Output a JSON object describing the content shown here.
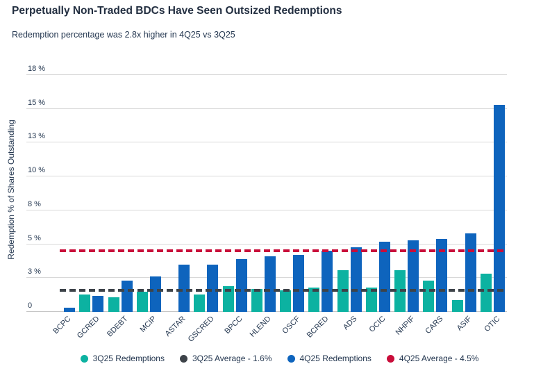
{
  "colors": {
    "teal": "#0cb2a1",
    "blue": "#0e64bd",
    "dark": "#3d4349",
    "red": "#c90d3a",
    "grid": "#d8d8d8",
    "axis": "#c6c6c6",
    "text": "#243750"
  },
  "chart_data": {
    "type": "bar",
    "title": "Perpetually Non-Traded BDCs Have Seen Outsized Redemptions",
    "subtitle": "Redemption percentage was 2.8x higher in 4Q25 vs 3Q25",
    "xlabel": "",
    "ylabel": "Redemption % of Shares Outstanding",
    "ylim": [
      0,
      17.5
    ],
    "grid": true,
    "legend_position": "bottom",
    "yticks": [
      {
        "value": 0,
        "label": "0"
      },
      {
        "value": 2.5,
        "label": "3 %"
      },
      {
        "value": 5,
        "label": "5 %"
      },
      {
        "value": 7.5,
        "label": "8 %"
      },
      {
        "value": 10,
        "label": "10 %"
      },
      {
        "value": 12.5,
        "label": "13 %"
      },
      {
        "value": 15,
        "label": "15 %"
      },
      {
        "value": 17.5,
        "label": "18 %"
      }
    ],
    "categories": [
      "BCPC",
      "GCRED",
      "BDEBT",
      "MCIP",
      "ASTAR",
      "GSCRED",
      "BPCC",
      "HLEND",
      "OSCF",
      "BCRED",
      "ADS",
      "OCIC",
      "NHPIF",
      "CARS",
      "ASIF",
      "OTIC"
    ],
    "series": [
      {
        "name": "3Q25 Redemptions",
        "color_key": "teal",
        "values": [
          0,
          1.3,
          1.1,
          1.5,
          0,
          1.3,
          1.9,
          1.7,
          1.6,
          1.8,
          3.1,
          1.8,
          3.1,
          2.3,
          0.9,
          2.8
        ]
      },
      {
        "name": "4Q25 Redemptions",
        "color_key": "blue",
        "values": [
          0.3,
          1.2,
          2.3,
          2.6,
          3.5,
          3.5,
          3.9,
          4.1,
          4.2,
          4.5,
          4.8,
          5.2,
          5.3,
          5.4,
          5.8,
          15.3
        ]
      }
    ],
    "reference_lines": [
      {
        "label": "3Q25 Average - 1.6%",
        "value": 1.6,
        "color_key": "dark"
      },
      {
        "label": "4Q25 Average - 4.5%",
        "value": 4.5,
        "color_key": "red"
      }
    ],
    "legend": [
      {
        "label": "3Q25 Redemptions",
        "color_key": "teal"
      },
      {
        "label": "3Q25 Average - 1.6%",
        "color_key": "dark"
      },
      {
        "label": "4Q25 Redemptions",
        "color_key": "blue"
      },
      {
        "label": "4Q25 Average - 4.5%",
        "color_key": "red"
      }
    ]
  }
}
